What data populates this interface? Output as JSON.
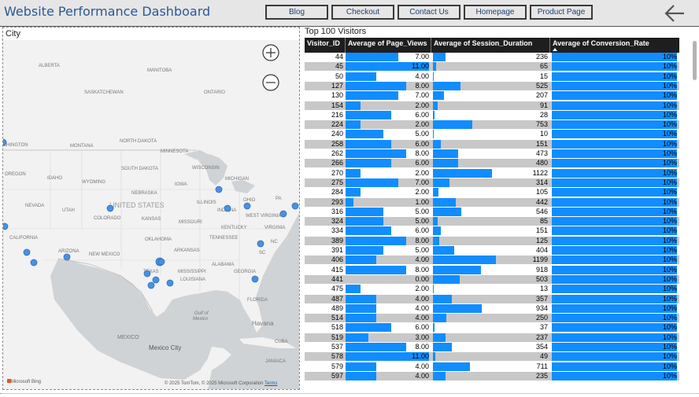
{
  "header": {
    "title": "Website Performance Dashboard",
    "nav": [
      "Blog",
      "Checkout",
      "Contact Us",
      "Homepage",
      "Product Page"
    ]
  },
  "map": {
    "title": "City",
    "bing_credit": "Microsoft Bing",
    "copyright": "© 2025 TomTom, © 2025 Microsoft Corporation",
    "terms": "Terms",
    "zoom_in": "+",
    "zoom_out": "−",
    "place_labels": [
      "ALBERTA",
      "MANITOBA",
      "SASKATCHEWAN",
      "ONTARIO",
      "SHINGTON",
      "MONTANA",
      "NORTH DAKOTA",
      "MINNESOTA",
      "OREGON",
      "IDAHO",
      "WYOMING",
      "SOUTH DAKOTA",
      "WISCONSIN",
      "MICHIGAN",
      "IOWA",
      "NEBRASKA",
      "NEVADA",
      "UTAH",
      "UNITED STATES",
      "ILLINOIS",
      "INDIANA",
      "OHIO",
      "PA",
      "COLORADO",
      "KANSAS",
      "MISSOURI",
      "WEST VIRGINIA",
      "KENTUCKY",
      "VIRGINIA",
      "CALIFORNIA",
      "OKLAHOMA",
      "TENNESSEE",
      "NC",
      "ARIZONA",
      "NEW MEXICO",
      "ARKANSAS",
      "SC",
      "ALABAMA",
      "MISSISSIPPI",
      "GEORGIA",
      "TEXAS",
      "LOUISIANA",
      "FLORIDA",
      "Gulf of",
      "Mexico",
      "Havana",
      "MEXICO",
      "Mexico City",
      "CUBA",
      "JAMAICA"
    ]
  },
  "table": {
    "title": "Top 100 Visitors",
    "columns": [
      "Visitor_ID",
      "Average of Page_Views",
      "Average of Session_Duration",
      "Average of Conversion_Rate"
    ],
    "rows": [
      [
        "44",
        "7.00",
        "236",
        "10%"
      ],
      [
        "45",
        "11.00",
        "65",
        "10%"
      ],
      [
        "50",
        "4.00",
        "15",
        "10%"
      ],
      [
        "127",
        "8.00",
        "525",
        "10%"
      ],
      [
        "130",
        "7.00",
        "207",
        "10%"
      ],
      [
        "154",
        "2.00",
        "91",
        "10%"
      ],
      [
        "216",
        "6.00",
        "28",
        "10%"
      ],
      [
        "224",
        "2.00",
        "753",
        "10%"
      ],
      [
        "240",
        "5.00",
        "10",
        "10%"
      ],
      [
        "258",
        "6.00",
        "151",
        "10%"
      ],
      [
        "262",
        "8.00",
        "473",
        "10%"
      ],
      [
        "266",
        "6.00",
        "480",
        "10%"
      ],
      [
        "270",
        "2.00",
        "1122",
        "10%"
      ],
      [
        "275",
        "7.00",
        "314",
        "10%"
      ],
      [
        "284",
        "2.00",
        "105",
        "10%"
      ],
      [
        "293",
        "1.00",
        "442",
        "10%"
      ],
      [
        "316",
        "5.00",
        "546",
        "10%"
      ],
      [
        "324",
        "5.00",
        "85",
        "10%"
      ],
      [
        "334",
        "6.00",
        "151",
        "10%"
      ],
      [
        "389",
        "8.00",
        "125",
        "10%"
      ],
      [
        "391",
        "5.00",
        "404",
        "10%"
      ],
      [
        "406",
        "4.00",
        "1199",
        "10%"
      ],
      [
        "415",
        "8.00",
        "918",
        "10%"
      ],
      [
        "441",
        "0.00",
        "503",
        "10%"
      ],
      [
        "475",
        "2.00",
        "13",
        "10%"
      ],
      [
        "487",
        "4.00",
        "357",
        "10%"
      ],
      [
        "489",
        "4.00",
        "934",
        "10%"
      ],
      [
        "514",
        "4.00",
        "250",
        "10%"
      ],
      [
        "518",
        "6.00",
        "37",
        "10%"
      ],
      [
        "519",
        "3.00",
        "237",
        "10%"
      ],
      [
        "537",
        "8.00",
        "354",
        "10%"
      ],
      [
        "578",
        "11.00",
        "49",
        "10%"
      ],
      [
        "579",
        "4.00",
        "711",
        "10%"
      ],
      [
        "597",
        "4.00",
        "235",
        "10%"
      ]
    ]
  },
  "colors": {
    "bar": "#118dff",
    "header_bg": "#e6e6e6",
    "title": "#2b5797",
    "row_alt": "#c8c8c8"
  }
}
